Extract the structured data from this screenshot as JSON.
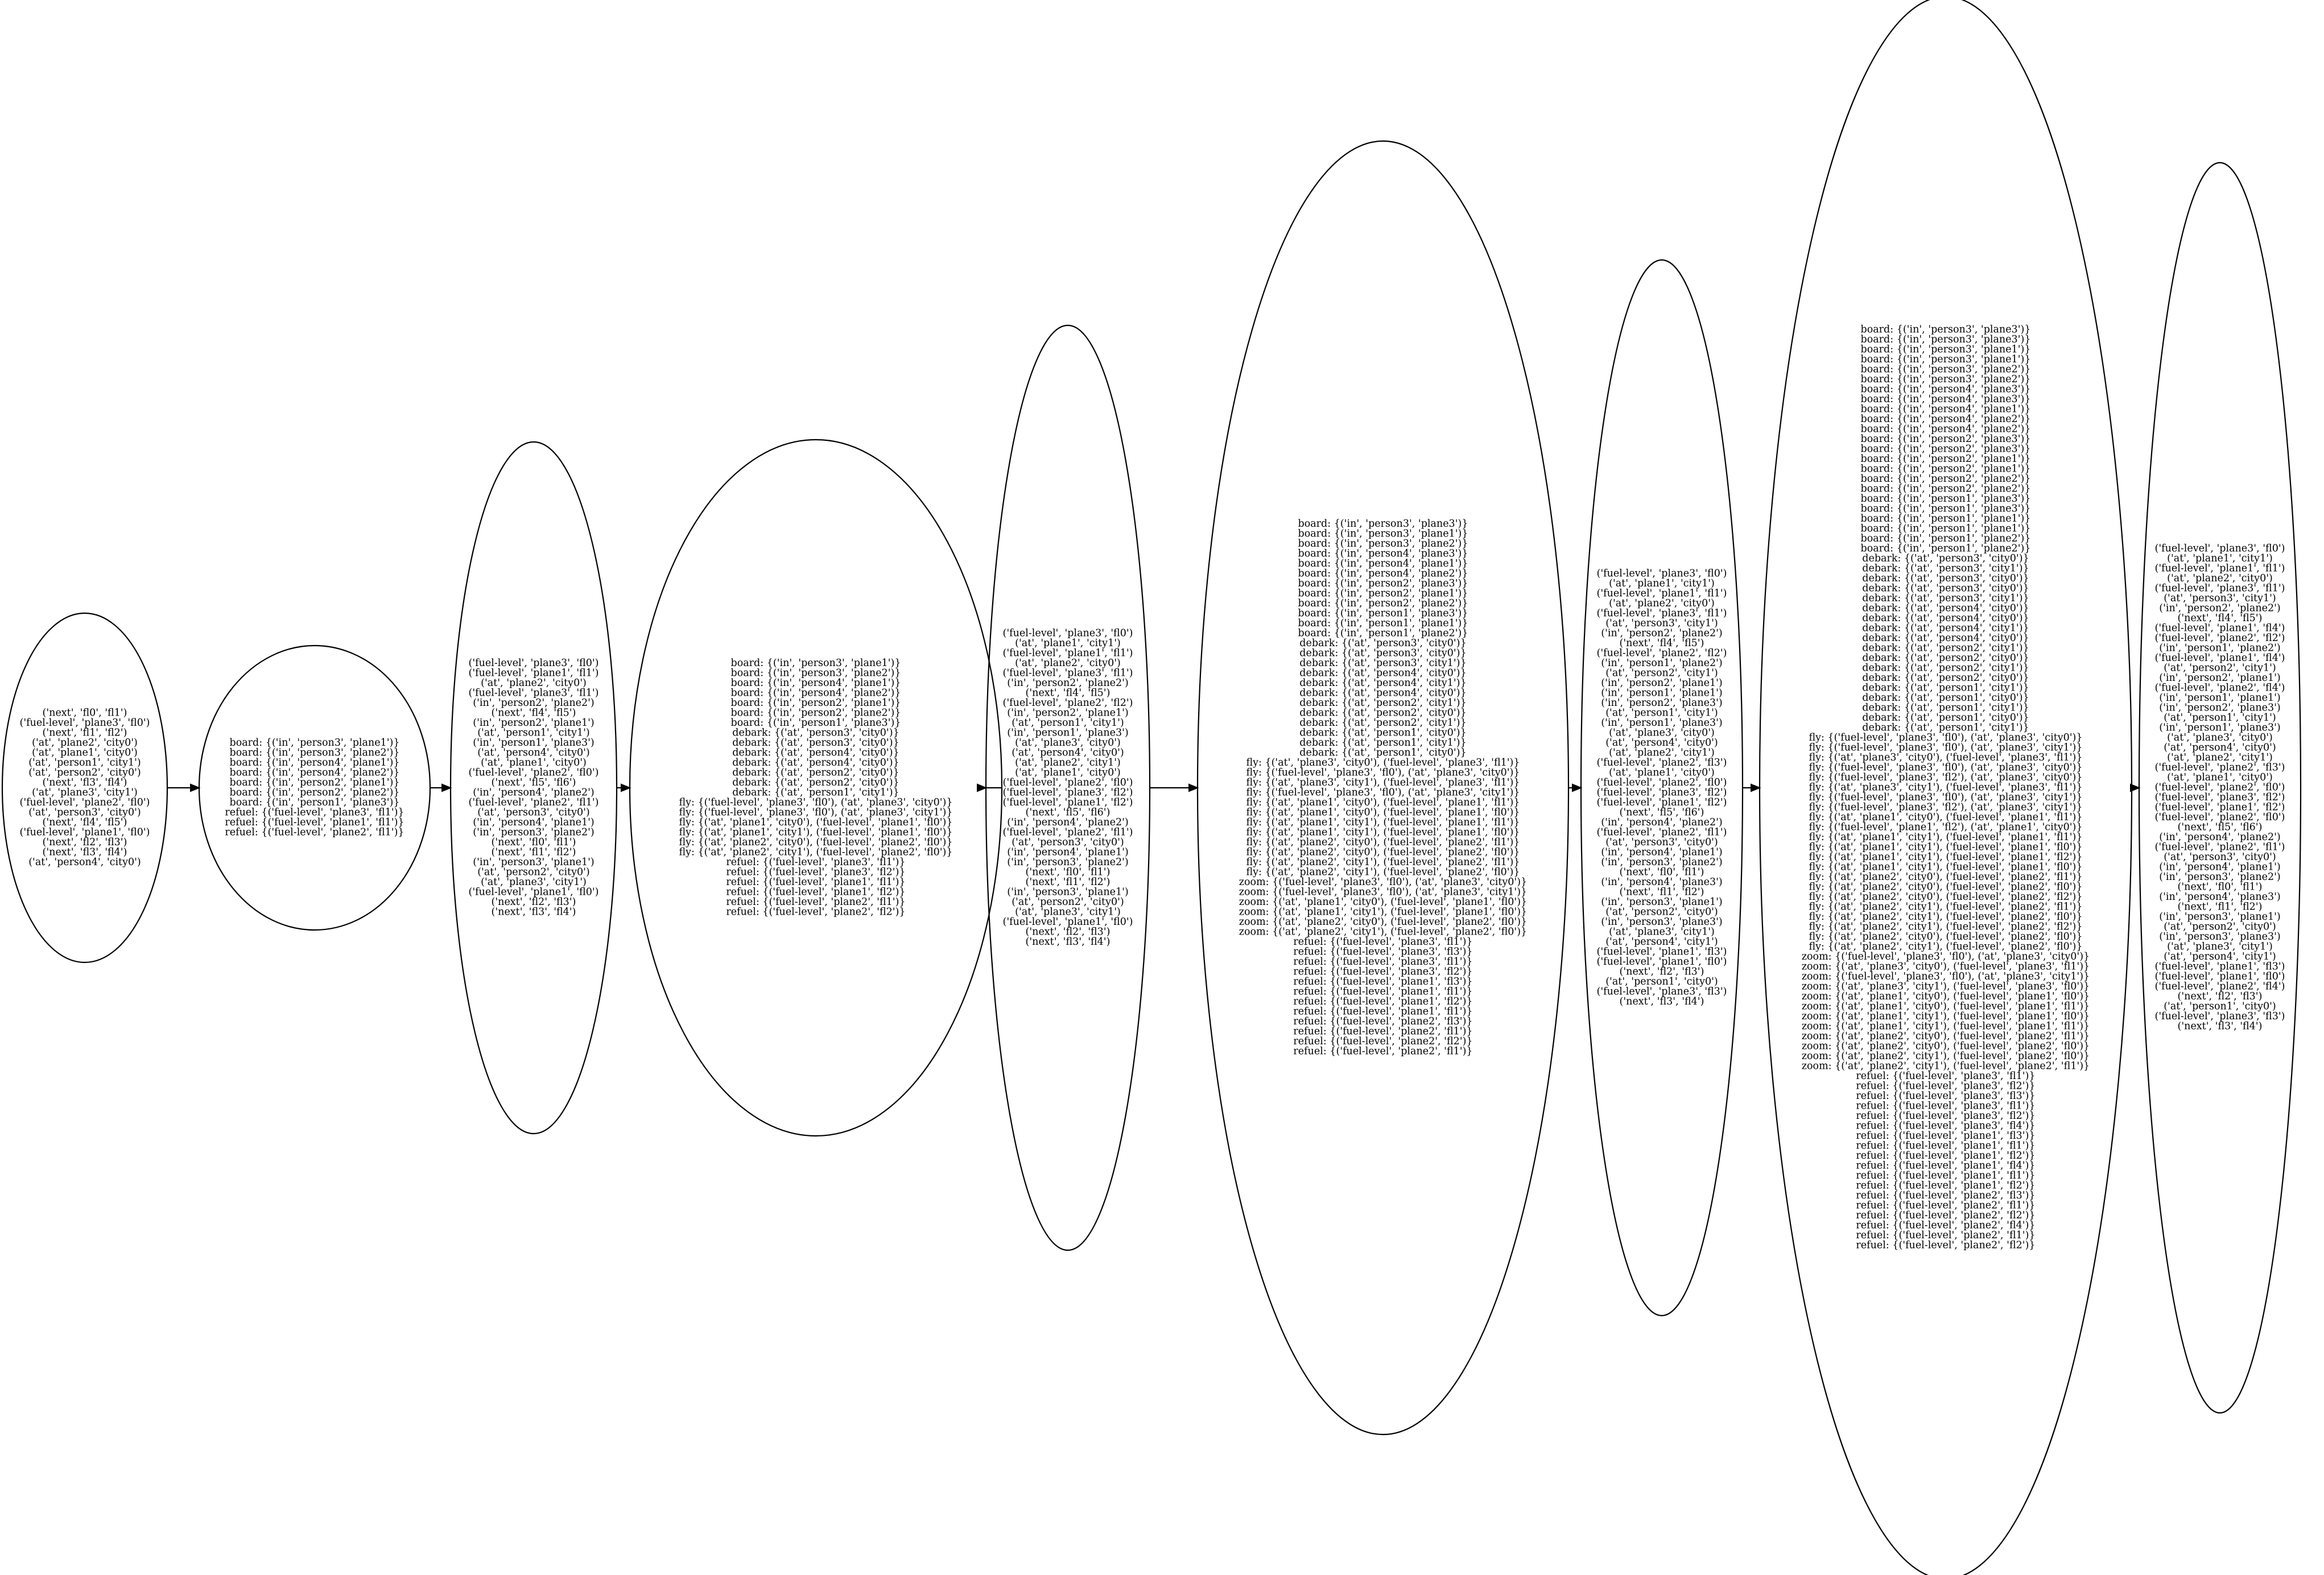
{
  "nodes": [
    {
      "id": "n1",
      "lines": [
        "('next', 'fl0', 'fl1')",
        "('fuel-level', 'plane3', 'fl0')",
        "('next', 'fl1', 'fl2')",
        "('at', 'plane2', 'city0')",
        "('at', 'plane1', 'city0')",
        "('at', 'person1', 'city1')",
        "('at', 'person2', 'city0')",
        "('next', 'fl3', 'fl4')",
        "('at', 'plane3', 'city1')",
        "('fuel-level', 'plane2', 'fl0')",
        "('at', 'person3', 'city0')",
        "('next', 'fl4', 'fl5')",
        "('fuel-level', 'plane1', 'fl0')",
        "('next', 'fl2', 'fl3')",
        "('next', 'fl3', 'fl4')",
        "('at', 'person4', 'city0')"
      ]
    },
    {
      "id": "n2",
      "lines": [
        "board: {('in', 'person3', 'plane1')}",
        "board: {('in', 'person3', 'plane2')}",
        "board: {('in', 'person4', 'plane1')}",
        "board: {('in', 'person4', 'plane2')}",
        "board: {('in', 'person2', 'plane1')}",
        "board: {('in', 'person2', 'plane2')}",
        "board: {('in', 'person1', 'plane3')}",
        "refuel: {('fuel-level', 'plane3', 'fl1')}",
        "refuel: {('fuel-level', 'plane1', 'fl1')}",
        "refuel: {('fuel-level', 'plane2', 'fl1')}"
      ]
    },
    {
      "id": "n3",
      "lines": [
        "('fuel-level', 'plane3', 'fl0')",
        "('fuel-level', 'plane1', 'fl1')",
        "('at', 'plane2', 'city0')",
        "('fuel-level', 'plane3', 'fl1')",
        "('in', 'person2', 'plane2')",
        "('next', 'fl4', 'fl5')",
        "('in', 'person2', 'plane1')",
        "('at', 'person1', 'city1')",
        "('in', 'person1', 'plane3')",
        "('at', 'person4', 'city0')",
        "('at', 'plane1', 'city0')",
        "('fuel-level', 'plane2', 'fl0')",
        "('next', 'fl5', 'fl6')",
        "('in', 'person4', 'plane2')",
        "('fuel-level', 'plane2', 'fl1')",
        "('at', 'person3', 'city0')",
        "('in', 'person4', 'plane1')",
        "('in', 'person3', 'plane2')",
        "('next', 'fl0', 'fl1')",
        "('next', 'fl1', 'fl2')",
        "('in', 'person3', 'plane1')",
        "('at', 'person2', 'city0')",
        "('at', 'plane3', 'city1')",
        "('fuel-level', 'plane1', 'fl0')",
        "('next', 'fl2', 'fl3')",
        "('next', 'fl3', 'fl4')"
      ]
    },
    {
      "id": "n4",
      "lines": [
        "board: {('in', 'person3', 'plane1')}",
        "board: {('in', 'person3', 'plane2')}",
        "board: {('in', 'person4', 'plane1')}",
        "board: {('in', 'person4', 'plane2')}",
        "board: {('in', 'person2', 'plane1')}",
        "board: {('in', 'person2', 'plane2')}",
        "board: {('in', 'person1', 'plane3')}",
        "debark: {('at', 'person3', 'city0')}",
        "debark: {('at', 'person3', 'city0')}",
        "debark: {('at', 'person4', 'city0')}",
        "debark: {('at', 'person4', 'city0')}",
        "debark: {('at', 'person2', 'city0')}",
        "debark: {('at', 'person2', 'city0')}",
        "debark: {('at', 'person1', 'city1')}",
        "fly: {('fuel-level', 'plane3', 'fl0'), ('at', 'plane3', 'city0')}",
        "fly: {('fuel-level', 'plane3', 'fl0'), ('at', 'plane3', 'city1')}",
        "fly: {('at', 'plane1', 'city0'), ('fuel-level', 'plane1', 'fl0')}",
        "fly: {('at', 'plane1', 'city1'), ('fuel-level', 'plane1', 'fl0')}",
        "fly: {('at', 'plane2', 'city0'), ('fuel-level', 'plane2', 'fl0')}",
        "fly: {('at', 'plane2', 'city1'), ('fuel-level', 'plane2', 'fl0')}",
        "refuel: {('fuel-level', 'plane3', 'fl1')}",
        "refuel: {('fuel-level', 'plane3', 'fl2')}",
        "refuel: {('fuel-level', 'plane1', 'fl1')}",
        "refuel: {('fuel-level', 'plane1', 'fl2')}",
        "refuel: {('fuel-level', 'plane2', 'fl1')}",
        "refuel: {('fuel-level', 'plane2', 'fl2')}"
      ]
    },
    {
      "id": "n5",
      "lines": [
        "('fuel-level', 'plane3', 'fl0')",
        "('at', 'plane1', 'city1')",
        "('fuel-level', 'plane1', 'fl1')",
        "('at', 'plane2', 'city0')",
        "('fuel-level', 'plane3', 'fl1')",
        "('in', 'person2', 'plane2')",
        "('next', 'fl4', 'fl5')",
        "('fuel-level', 'plane2', 'fl2')",
        "('in', 'person2', 'plane1')",
        "('at', 'person1', 'city1')",
        "('in', 'person1', 'plane3')",
        "('at', 'plane3', 'city0')",
        "('at', 'person4', 'city0')",
        "('at', 'plane2', 'city1')",
        "('at', 'plane1', 'city0')",
        "('fuel-level', 'plane2', 'fl0')",
        "('fuel-level', 'plane3', 'fl2')",
        "('fuel-level', 'plane1', 'fl2')",
        "('next', 'fl5', 'fl6')",
        "('in', 'person4', 'plane2')",
        "('fuel-level', 'plane2', 'fl1')",
        "('at', 'person3', 'city0')",
        "('in', 'person4', 'plane1')",
        "('in', 'person3', 'plane2')",
        "('next', 'fl0', 'fl1')",
        "('next', 'fl1', 'fl2')",
        "('in', 'person3', 'plane1')",
        "('at', 'person2', 'city0')",
        "('at', 'plane3', 'city1')",
        "('fuel-level', 'plane1', 'fl0')",
        "('next', 'fl2', 'fl3')",
        "('next', 'fl3', 'fl4')"
      ]
    },
    {
      "id": "n6",
      "lines": [
        "board: {('in', 'person3', 'plane3')}",
        "board: {('in', 'person3', 'plane1')}",
        "board: {('in', 'person3', 'plane2')}",
        "board: {('in', 'person4', 'plane3')}",
        "board: {('in', 'person4', 'plane1')}",
        "board: {('in', 'person4', 'plane2')}",
        "board: {('in', 'person2', 'plane3')}",
        "board: {('in', 'person2', 'plane1')}",
        "board: {('in', 'person2', 'plane2')}",
        "board: {('in', 'person1', 'plane3')}",
        "board: {('in', 'person1', 'plane1')}",
        "board: {('in', 'person1', 'plane2')}",
        "debark: {('at', 'person3', 'city0')}",
        "debark: {('at', 'person3', 'city0')}",
        "debark: {('at', 'person3', 'city1')}",
        "debark: {('at', 'person4', 'city0')}",
        "debark: {('at', 'person4', 'city1')}",
        "debark: {('at', 'person4', 'city0')}",
        "debark: {('at', 'person2', 'city1')}",
        "debark: {('at', 'person2', 'city0')}",
        "debark: {('at', 'person2', 'city1')}",
        "debark: {('at', 'person1', 'city0')}",
        "debark: {('at', 'person1', 'city1')}",
        "debark: {('at', 'person1', 'city0')}",
        "fly: {('at', 'plane3', 'city0'), ('fuel-level', 'plane3', 'fl1')}",
        "fly: {('fuel-level', 'plane3', 'fl0'), ('at', 'plane3', 'city0')}",
        "fly: {('at', 'plane3', 'city1'), ('fuel-level', 'plane3', 'fl1')}",
        "fly: {('fuel-level', 'plane3', 'fl0'), ('at', 'plane3', 'city1')}",
        "fly: {('at', 'plane1', 'city0'), ('fuel-level', 'plane1', 'fl1')}",
        "fly: {('at', 'plane1', 'city0'), ('fuel-level', 'plane1', 'fl0')}",
        "fly: {('at', 'plane1', 'city1'), ('fuel-level', 'plane1', 'fl1')}",
        "fly: {('at', 'plane1', 'city1'), ('fuel-level', 'plane1', 'fl0')}",
        "fly: {('at', 'plane2', 'city0'), ('fuel-level', 'plane2', 'fl1')}",
        "fly: {('at', 'plane2', 'city0'), ('fuel-level', 'plane2', 'fl0')}",
        "fly: {('at', 'plane2', 'city1'), ('fuel-level', 'plane2', 'fl1')}",
        "fly: {('at', 'plane2', 'city1'), ('fuel-level', 'plane2', 'fl0')}",
        "zoom: {('fuel-level', 'plane3', 'fl0'), ('at', 'plane3', 'city0')}",
        "zoom: {('fuel-level', 'plane3', 'fl0'), ('at', 'plane3', 'city1')}",
        "zoom: {('at', 'plane1', 'city0'), ('fuel-level', 'plane1', 'fl0')}",
        "zoom: {('at', 'plane1', 'city1'), ('fuel-level', 'plane1', 'fl0')}",
        "zoom: {('at', 'plane2', 'city0'), ('fuel-level', 'plane2', 'fl0')}",
        "zoom: {('at', 'plane2', 'city1'), ('fuel-level', 'plane2', 'fl0')}",
        "refuel: {('fuel-level', 'plane3', 'fl1')}",
        "refuel: {('fuel-level', 'plane3', 'fl3')}",
        "refuel: {('fuel-level', 'plane3', 'fl1')}",
        "refuel: {('fuel-level', 'plane3', 'fl2')}",
        "refuel: {('fuel-level', 'plane1', 'fl3')}",
        "refuel: {('fuel-level', 'plane1', 'fl1')}",
        "refuel: {('fuel-level', 'plane1', 'fl2')}",
        "refuel: {('fuel-level', 'plane1', 'fl1')}",
        "refuel: {('fuel-level', 'plane2', 'fl3')}",
        "refuel: {('fuel-level', 'plane2', 'fl1')}",
        "refuel: {('fuel-level', 'plane2', 'fl2')}",
        "refuel: {('fuel-level', 'plane2', 'fl1')}"
      ]
    },
    {
      "id": "n7",
      "lines": [
        "('fuel-level', 'plane3', 'fl0')",
        "('at', 'plane1', 'city1')",
        "('fuel-level', 'plane1', 'fl1')",
        "('at', 'plane2', 'city0')",
        "('fuel-level', 'plane3', 'fl1')",
        "('at', 'person3', 'city1')",
        "('in', 'person2', 'plane2')",
        "('next', 'fl4', 'fl5')",
        "('fuel-level', 'plane2', 'fl2')",
        "('in', 'person1', 'plane2')",
        "('at', 'person2', 'city1')",
        "('in', 'person2', 'plane1')",
        "('in', 'person1', 'plane1')",
        "('in', 'person2', 'plane3')",
        "('at', 'person1', 'city1')",
        "('in', 'person1', 'plane3')",
        "('at', 'plane3', 'city0')",
        "('at', 'person4', 'city0')",
        "('at', 'plane2', 'city1')",
        "('fuel-level', 'plane2', 'fl3')",
        "('at', 'plane1', 'city0')",
        "('fuel-level', 'plane2', 'fl0')",
        "('fuel-level', 'plane3', 'fl2')",
        "('fuel-level', 'plane1', 'fl2')",
        "('next', 'fl5', 'fl6')",
        "('in', 'person4', 'plane2')",
        "('fuel-level', 'plane2', 'fl1')",
        "('at', 'person3', 'city0')",
        "('in', 'person4', 'plane1')",
        "('in', 'person3', 'plane2')",
        "('next', 'fl0', 'fl1')",
        "('in', 'person4', 'plane3')",
        "('next', 'fl1', 'fl2')",
        "('in', 'person3', 'plane1')",
        "('at', 'person2', 'city0')",
        "('in', 'person3', 'plane3')",
        "('at', 'plane3', 'city1')",
        "('at', 'person4', 'city1')",
        "('fuel-level', 'plane1', 'fl3')",
        "('fuel-level', 'plane1', 'fl0')",
        "('next', 'fl2', 'fl3')",
        "('at', 'person1', 'city0')",
        "('fuel-level', 'plane3', 'fl3')",
        "('next', 'fl3', 'fl4')"
      ]
    },
    {
      "id": "n8",
      "lines": [
        "board: {('in', 'person3', 'plane3')}",
        "board: {('in', 'person3', 'plane3')}",
        "board: {('in', 'person3', 'plane1')}",
        "board: {('in', 'person3', 'plane1')}",
        "board: {('in', 'person3', 'plane2')}",
        "board: {('in', 'person3', 'plane2')}",
        "board: {('in', 'person4', 'plane3')}",
        "board: {('in', 'person4', 'plane3')}",
        "board: {('in', 'person4', 'plane1')}",
        "board: {('in', 'person4', 'plane2')}",
        "board: {('in', 'person4', 'plane2')}",
        "board: {('in', 'person2', 'plane3')}",
        "board: {('in', 'person2', 'plane3')}",
        "board: {('in', 'person2', 'plane1')}",
        "board: {('in', 'person2', 'plane1')}",
        "board: {('in', 'person2', 'plane2')}",
        "board: {('in', 'person2', 'plane2')}",
        "board: {('in', 'person1', 'plane3')}",
        "board: {('in', 'person1', 'plane3')}",
        "board: {('in', 'person1', 'plane1')}",
        "board: {('in', 'person1', 'plane1')}",
        "board: {('in', 'person1', 'plane2')}",
        "board: {('in', 'person1', 'plane2')}",
        "debark: {('at', 'person3', 'city0')}",
        "debark: {('at', 'person3', 'city1')}",
        "debark: {('at', 'person3', 'city0')}",
        "debark: {('at', 'person3', 'city0')}",
        "debark: {('at', 'person3', 'city1')}",
        "debark: {('at', 'person4', 'city0')}",
        "debark: {('at', 'person4', 'city0')}",
        "debark: {('at', 'person4', 'city1')}",
        "debark: {('at', 'person4', 'city0')}",
        "debark: {('at', 'person2', 'city1')}",
        "debark: {('at', 'person2', 'city0')}",
        "debark: {('at', 'person2', 'city1')}",
        "debark: {('at', 'person2', 'city0')}",
        "debark: {('at', 'person1', 'city1')}",
        "debark: {('at', 'person1', 'city0')}",
        "debark: {('at', 'person1', 'city1')}",
        "debark: {('at', 'person1', 'city0')}",
        "debark: {('at', 'person1', 'city1')}",
        "fly: {('fuel-level', 'plane3', 'fl0'), ('at', 'plane3', 'city0')}",
        "fly: {('fuel-level', 'plane3', 'fl0'), ('at', 'plane3', 'city1')}",
        "fly: {('at', 'plane3', 'city0'), ('fuel-level', 'plane3', 'fl1')}",
        "fly: {('fuel-level', 'plane3', 'fl0'), ('at', 'plane3', 'city0')}",
        "fly: {('fuel-level', 'plane3', 'fl2'), ('at', 'plane3', 'city0')}",
        "fly: {('at', 'plane3', 'city1'), ('fuel-level', 'plane3', 'fl1')}",
        "fly: {('fuel-level', 'plane3', 'fl0'), ('at', 'plane3', 'city1')}",
        "fly: {('fuel-level', 'plane3', 'fl2'), ('at', 'plane3', 'city1')}",
        "fly: {('at', 'plane1', 'city0'), ('fuel-level', 'plane1', 'fl1')}",
        "fly: {('fuel-level', 'plane1', 'fl2'), ('at', 'plane1', 'city0')}",
        "fly: {('at', 'plane1', 'city1'), ('fuel-level', 'plane1', 'fl1')}",
        "fly: {('at', 'plane1', 'city1'), ('fuel-level', 'plane1', 'fl0')}",
        "fly: {('at', 'plane1', 'city1'), ('fuel-level', 'plane1', 'fl2')}",
        "fly: {('at', 'plane1', 'city1'), ('fuel-level', 'plane1', 'fl0')}",
        "fly: {('at', 'plane2', 'city0'), ('fuel-level', 'plane2', 'fl1')}",
        "fly: {('at', 'plane2', 'city0'), ('fuel-level', 'plane2', 'fl0')}",
        "fly: {('at', 'plane2', 'city0'), ('fuel-level', 'plane2', 'fl2')}",
        "fly: {('at', 'plane2', 'city1'), ('fuel-level', 'plane2', 'fl1')}",
        "fly: {('at', 'plane2', 'city1'), ('fuel-level', 'plane2', 'fl0')}",
        "fly: {('at', 'plane2', 'city1'), ('fuel-level', 'plane2', 'fl2')}",
        "fly: {('at', 'plane2', 'city0'), ('fuel-level', 'plane2', 'fl0')}",
        "fly: {('at', 'plane2', 'city1'), ('fuel-level', 'plane2', 'fl0')}",
        "zoom: {('fuel-level', 'plane3', 'fl0'), ('at', 'plane3', 'city0')}",
        "zoom: {('at', 'plane3', 'city0'), ('fuel-level', 'plane3', 'fl1')}",
        "zoom: {('fuel-level', 'plane3', 'fl0'), ('at', 'plane3', 'city1')}",
        "zoom: {('at', 'plane3', 'city1'), ('fuel-level', 'plane3', 'fl0')}",
        "zoom: {('at', 'plane1', 'city0'), ('fuel-level', 'plane1', 'fl0')}",
        "zoom: {('at', 'plane1', 'city0'), ('fuel-level', 'plane1', 'fl1')}",
        "zoom: {('at', 'plane1', 'city1'), ('fuel-level', 'plane1', 'fl0')}",
        "zoom: {('at', 'plane1', 'city1'), ('fuel-level', 'plane1', 'fl1')}",
        "zoom: {('at', 'plane2', 'city0'), ('fuel-level', 'plane2', 'fl1')}",
        "zoom: {('at', 'plane2', 'city0'), ('fuel-level', 'plane2', 'fl0')}",
        "zoom: {('at', 'plane2', 'city1'), ('fuel-level', 'plane2', 'fl0')}",
        "zoom: {('at', 'plane2', 'city1'), ('fuel-level', 'plane2', 'fl1')}",
        "refuel: {('fuel-level', 'plane3', 'fl1')}",
        "refuel: {('fuel-level', 'plane3', 'fl2')}",
        "refuel: {('fuel-level', 'plane3', 'fl3')}",
        "refuel: {('fuel-level', 'plane3', 'fl1')}",
        "refuel: {('fuel-level', 'plane3', 'fl2')}",
        "refuel: {('fuel-level', 'plane3', 'fl4')}",
        "refuel: {('fuel-level', 'plane1', 'fl3')}",
        "refuel: {('fuel-level', 'plane1', 'fl1')}",
        "refuel: {('fuel-level', 'plane1', 'fl2')}",
        "refuel: {('fuel-level', 'plane1', 'fl4')}",
        "refuel: {('fuel-level', 'plane1', 'fl1')}",
        "refuel: {('fuel-level', 'plane1', 'fl2')}",
        "refuel: {('fuel-level', 'plane2', 'fl3')}",
        "refuel: {('fuel-level', 'plane2', 'fl1')}",
        "refuel: {('fuel-level', 'plane2', 'fl2')}",
        "refuel: {('fuel-level', 'plane2', 'fl4')}",
        "refuel: {('fuel-level', 'plane2', 'fl1')}",
        "refuel: {('fuel-level', 'plane2', 'fl2')}"
      ]
    },
    {
      "id": "n9",
      "lines": [
        "('fuel-level', 'plane3', 'fl0')",
        "('at', 'plane1', 'city1')",
        "('fuel-level', 'plane1', 'fl1')",
        "('at', 'plane2', 'city0')",
        "('fuel-level', 'plane3', 'fl1')",
        "('at', 'person3', 'city1')",
        "('in', 'person2', 'plane2')",
        "('next', 'fl4', 'fl5')",
        "('fuel-level', 'plane1', 'fl4')",
        "('fuel-level', 'plane2', 'fl2')",
        "('in', 'person1', 'plane2')",
        "('fuel-level', 'plane1', 'fl4')",
        "('at', 'person2', 'city1')",
        "('in', 'person2', 'plane1')",
        "('fuel-level', 'plane2', 'fl4')",
        "('in', 'person1', 'plane1')",
        "('in', 'person2', 'plane3')",
        "('at', 'person1', 'city1')",
        "('in', 'person1', 'plane3')",
        "('at', 'plane3', 'city0')",
        "('at', 'person4', 'city0')",
        "('at', 'plane2', 'city1')",
        "('fuel-level', 'plane2', 'fl3')",
        "('at', 'plane1', 'city0')",
        "('fuel-level', 'plane2', 'fl0')",
        "('fuel-level', 'plane3', 'fl2')",
        "('fuel-level', 'plane1', 'fl2')",
        "('fuel-level', 'plane2', 'fl0')",
        "('next', 'fl5', 'fl6')",
        "('in', 'person4', 'plane2')",
        "('fuel-level', 'plane2', 'fl1')",
        "('at', 'person3', 'city0')",
        "('in', 'person4', 'plane1')",
        "('in', 'person3', 'plane2')",
        "('next', 'fl0', 'fl1')",
        "('in', 'person4', 'plane3')",
        "('next', 'fl1', 'fl2')",
        "('in', 'person3', 'plane1')",
        "('at', 'person2', 'city0')",
        "('in', 'person3', 'plane3')",
        "('at', 'plane3', 'city1')",
        "('at', 'person4', 'city1')",
        "('fuel-level', 'plane1', 'fl3')",
        "('fuel-level', 'plane1', 'fl0')",
        "('fuel-level', 'plane2', 'fl4')",
        "('next', 'fl2', 'fl3')",
        "('at', 'person1', 'city0')",
        "('fuel-level', 'plane3', 'fl3')",
        "('next', 'fl3', 'fl4')"
      ]
    }
  ],
  "edges": [
    {
      "from": "n1",
      "to": "n2"
    },
    {
      "from": "n2",
      "to": "n3"
    },
    {
      "from": "n3",
      "to": "n4"
    },
    {
      "from": "n4",
      "to": "n5"
    },
    {
      "from": "n5",
      "to": "n6"
    },
    {
      "from": "n6",
      "to": "n7"
    },
    {
      "from": "n7",
      "to": "n8"
    },
    {
      "from": "n8",
      "to": "n9"
    }
  ]
}
